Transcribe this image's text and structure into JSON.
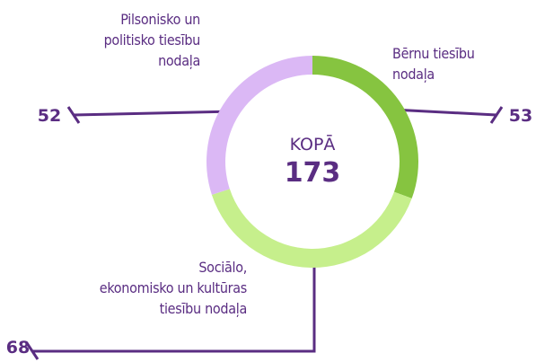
{
  "chart_data": {
    "type": "donut",
    "center_label": "KOPĀ",
    "total": 173,
    "categories": [
      "Bērnu tiesību\nnodaļa",
      "Sociālo,\nekonomisko un kultūras\ntiesību nodaļa",
      "Pilsonisko un\npolitisko tiesību\nnodaļa"
    ],
    "values": [
      53,
      68,
      52
    ],
    "colors": [
      "#86c440",
      "#c6ef8c",
      "#dbb8f5"
    ]
  }
}
